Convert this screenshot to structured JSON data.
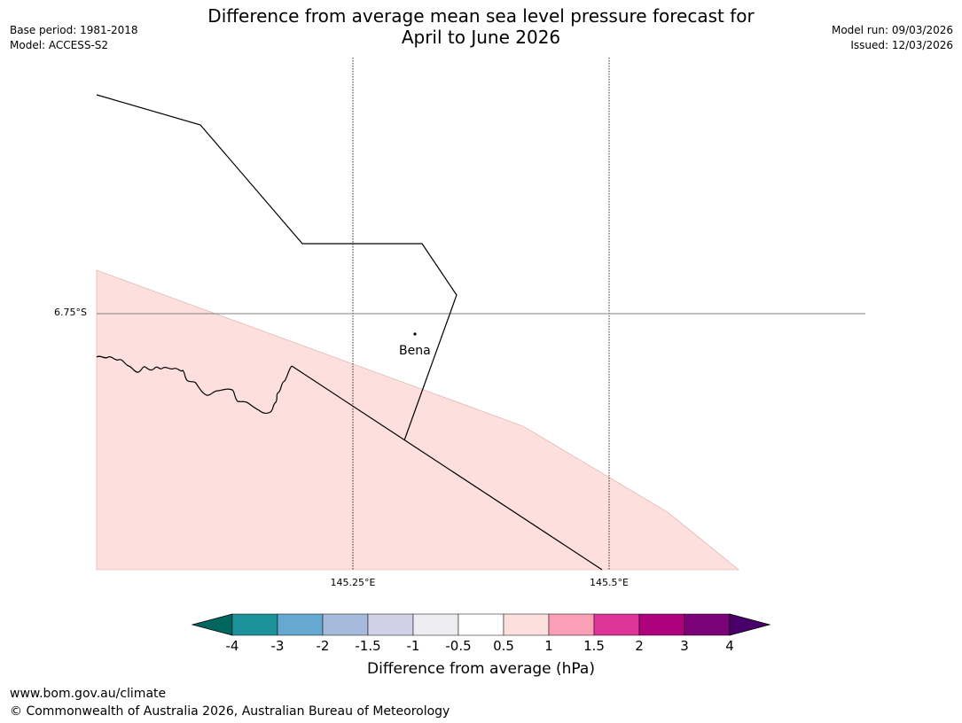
{
  "title": {
    "line1": "Difference from average mean sea level pressure forecast for",
    "line2": "April to June 2026"
  },
  "meta_left": {
    "base_period": "Base period: 1981-2018",
    "model": "Model: ACCESS-S2"
  },
  "meta_right": {
    "model_run": "Model run: 09/03/2026",
    "issued": "Issued: 12/03/2026"
  },
  "map": {
    "lat_labels": [
      "6.75°S"
    ],
    "lon_labels": [
      "145.25°E",
      "145.5°E"
    ],
    "place": {
      "name": "Bena"
    },
    "shaded_region_color": "#fde0dd",
    "shaded_region_category": "0.5 to 1 hPa"
  },
  "colorbar": {
    "label": "Difference from average (hPa)",
    "ticks": [
      "-4",
      "-3",
      "-2",
      "-1.5",
      "-1",
      "-0.5",
      "0.5",
      "1",
      "1.5",
      "2",
      "3",
      "4"
    ],
    "colors": {
      "lt_-4": "#01665e",
      "-4_-3": "#1b9299",
      "-3_-2": "#66a8d0",
      "-2_-1.5": "#a6bbdb",
      "-1.5_-1": "#d0d1e6",
      "-1_-0.5": "#ececf1",
      "-0.5_0.5": "#ffffff",
      "0.5_1": "#fde0dd",
      "1_1.5": "#fa9fb5",
      "1.5_2": "#dd3497",
      "2_3": "#ae017e",
      "3_4": "#7a0177",
      "gt_4": "#49006a"
    }
  },
  "footer": {
    "url": "www.bom.gov.au/climate",
    "copyright": "© Commonwealth of Australia 2026, Australian Bureau of Meteorology"
  }
}
